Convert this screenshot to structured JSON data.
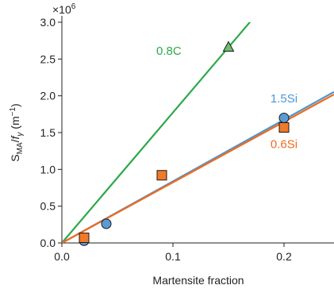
{
  "chart_data": {
    "type": "scatter",
    "title": "",
    "xlabel": "Martensite fraction",
    "ylabel_parts": {
      "main": "S",
      "sub1": "MA",
      "slash": "/",
      "f": "f",
      "sub2": "γ",
      "unit": " (m",
      "unit_sup": "−1",
      "unit_close": ")"
    },
    "y_multiplier_label": "×10",
    "y_multiplier_exp": "6",
    "xlim": [
      0,
      0.245
    ],
    "ylim": [
      0,
      3.0
    ],
    "x_ticks": [
      0.0,
      0.1,
      0.2
    ],
    "x_tick_labels": [
      "0.0",
      "0.1",
      "0.2"
    ],
    "y_ticks": [
      0.0,
      0.5,
      1.0,
      1.5,
      2.0,
      2.5,
      3.0
    ],
    "y_tick_labels": [
      "0.0",
      "0.5",
      "1.0",
      "1.5",
      "2.0",
      "2.5",
      "3.0"
    ],
    "series": [
      {
        "name": "0.8C",
        "marker": "triangle",
        "color": "#2ea84a",
        "marker_fill": "#6cbf6c",
        "points": [
          [
            0.15,
            2.66
          ]
        ],
        "fit_slope": 17.73
      },
      {
        "name": "1.5Si",
        "marker": "circle",
        "color": "#4f97cf",
        "marker_fill": "#5b9bd5",
        "points": [
          [
            0.02,
            0.03
          ],
          [
            0.04,
            0.26
          ],
          [
            0.2,
            1.7
          ]
        ],
        "fit_slope": 8.38
      },
      {
        "name": "0.6Si",
        "marker": "square",
        "color": "#f06a1d",
        "marker_fill": "#f07a28",
        "points": [
          [
            0.02,
            0.07
          ],
          [
            0.09,
            0.92
          ],
          [
            0.2,
            1.57
          ]
        ],
        "fit_slope": 8.24
      }
    ]
  }
}
